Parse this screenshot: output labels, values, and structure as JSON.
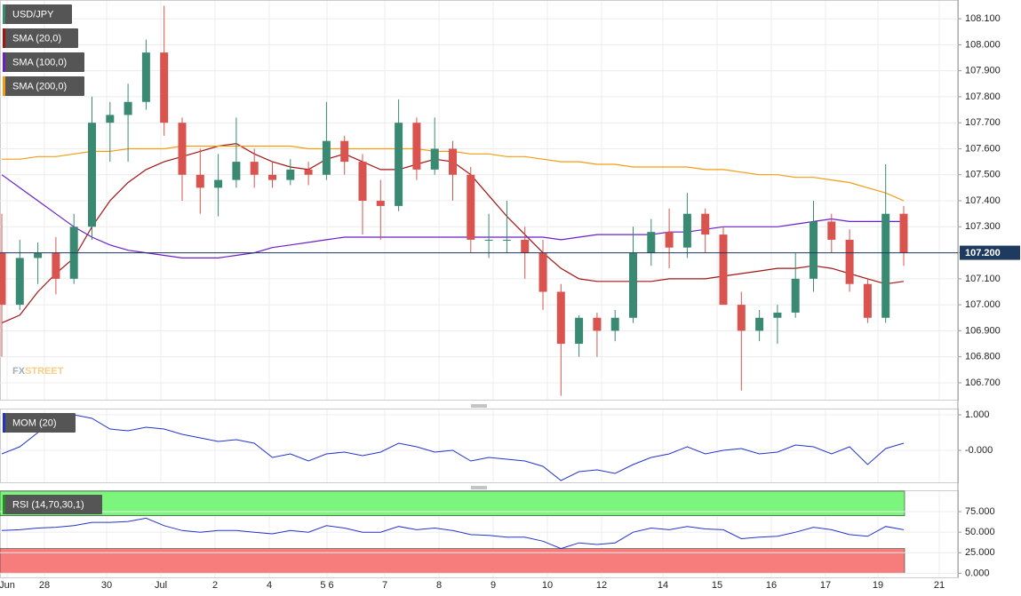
{
  "chart_data": [
    {
      "type": "candlestick",
      "title": "USD/JPY",
      "up_color": "#3a8a73",
      "down_color": "#d9534f",
      "grid": true,
      "open": [
        107.2,
        107.0,
        107.18,
        107.2,
        107.1,
        107.3,
        107.7,
        107.73,
        107.78,
        107.97,
        107.7,
        107.5,
        107.45,
        107.48,
        107.55,
        107.5,
        107.48,
        107.52,
        107.5,
        107.63,
        107.55,
        107.4,
        107.38,
        107.7,
        107.52,
        107.6,
        107.5,
        107.25,
        107.25,
        107.25,
        107.2,
        107.05,
        106.85,
        106.95,
        106.9,
        106.95,
        107.2,
        107.28,
        107.22,
        107.35,
        107.27,
        107.0,
        106.9,
        106.95,
        106.97,
        107.1,
        107.32,
        107.25,
        107.08,
        106.95,
        107.35
      ],
      "high": [
        107.35,
        107.25,
        107.24,
        107.26,
        107.35,
        107.8,
        107.78,
        107.85,
        108.02,
        108.15,
        107.72,
        107.6,
        107.58,
        107.72,
        107.6,
        107.55,
        107.56,
        107.55,
        107.78,
        107.65,
        107.58,
        107.48,
        107.79,
        107.72,
        107.72,
        107.63,
        107.53,
        107.35,
        107.4,
        107.3,
        107.25,
        107.08,
        106.96,
        106.97,
        106.98,
        107.3,
        107.33,
        107.37,
        107.43,
        107.37,
        107.3,
        107.05,
        106.98,
        107.0,
        107.2,
        107.4,
        107.35,
        107.29,
        107.1,
        107.54,
        107.38
      ],
      "low": [
        106.8,
        106.98,
        107.08,
        107.04,
        107.08,
        107.25,
        107.55,
        107.55,
        107.75,
        107.65,
        107.4,
        107.35,
        107.34,
        107.45,
        107.45,
        107.45,
        107.46,
        107.46,
        107.48,
        107.5,
        107.27,
        107.25,
        107.36,
        107.48,
        107.5,
        107.4,
        107.2,
        107.18,
        107.2,
        107.1,
        106.98,
        106.65,
        106.8,
        106.8,
        106.86,
        106.93,
        107.15,
        107.14,
        107.18,
        107.2,
        107.0,
        106.67,
        106.86,
        106.85,
        106.95,
        107.05,
        107.2,
        107.05,
        106.93,
        106.93,
        107.15
      ],
      "close": [
        107.0,
        107.18,
        107.2,
        107.1,
        107.3,
        107.7,
        107.73,
        107.78,
        107.97,
        107.7,
        107.5,
        107.45,
        107.48,
        107.55,
        107.5,
        107.48,
        107.52,
        107.5,
        107.63,
        107.55,
        107.4,
        107.38,
        107.7,
        107.52,
        107.6,
        107.5,
        107.25,
        107.25,
        107.25,
        107.2,
        107.05,
        106.85,
        106.95,
        106.9,
        106.95,
        107.2,
        107.28,
        107.22,
        107.35,
        107.27,
        107.0,
        106.9,
        106.95,
        106.97,
        107.1,
        107.32,
        107.25,
        107.08,
        106.95,
        107.35,
        107.2
      ],
      "series": [
        {
          "name": "SMA (20,0)",
          "color": "#a31515",
          "values": [
            106.93,
            106.96,
            107.05,
            107.12,
            107.18,
            107.3,
            107.4,
            107.47,
            107.52,
            107.55,
            107.57,
            107.59,
            107.61,
            107.62,
            107.58,
            107.55,
            107.53,
            107.52,
            107.56,
            107.58,
            107.55,
            107.52,
            107.52,
            107.54,
            107.56,
            107.55,
            107.5,
            107.42,
            107.34,
            107.27,
            107.2,
            107.14,
            107.1,
            107.09,
            107.09,
            107.09,
            107.09,
            107.1,
            107.1,
            107.1,
            107.11,
            107.12,
            107.13,
            107.14,
            107.14,
            107.15,
            107.14,
            107.12,
            107.1,
            107.08,
            107.09
          ]
        },
        {
          "name": "SMA (100,0)",
          "color": "#6a1fc9",
          "values": [
            107.5,
            107.45,
            107.4,
            107.35,
            107.3,
            107.26,
            107.23,
            107.21,
            107.2,
            107.19,
            107.18,
            107.18,
            107.18,
            107.19,
            107.2,
            107.22,
            107.23,
            107.24,
            107.25,
            107.26,
            107.26,
            107.26,
            107.26,
            107.26,
            107.26,
            107.26,
            107.26,
            107.26,
            107.26,
            107.26,
            107.26,
            107.25,
            107.26,
            107.27,
            107.27,
            107.27,
            107.27,
            107.28,
            107.28,
            107.29,
            107.3,
            107.3,
            107.3,
            107.3,
            107.31,
            107.32,
            107.33,
            107.32,
            107.32,
            107.32,
            107.32
          ]
        },
        {
          "name": "SMA (200,0)",
          "color": "#f39c12",
          "values": [
            107.56,
            107.56,
            107.57,
            107.57,
            107.58,
            107.59,
            107.59,
            107.6,
            107.6,
            107.6,
            107.61,
            107.61,
            107.61,
            107.61,
            107.61,
            107.61,
            107.61,
            107.6,
            107.6,
            107.6,
            107.6,
            107.6,
            107.6,
            107.6,
            107.59,
            107.59,
            107.58,
            107.58,
            107.57,
            107.57,
            107.56,
            107.55,
            107.55,
            107.54,
            107.54,
            107.53,
            107.53,
            107.53,
            107.53,
            107.52,
            107.52,
            107.51,
            107.5,
            107.5,
            107.49,
            107.49,
            107.48,
            107.47,
            107.45,
            107.43,
            107.4
          ]
        }
      ],
      "ylim": [
        106.635,
        108.172
      ],
      "yticks": [
        {
          "value": 106.7,
          "label": "106.700"
        },
        {
          "value": 106.8,
          "label": "106.800"
        },
        {
          "value": 106.9,
          "label": "106.900"
        },
        {
          "value": 107.0,
          "label": "107.000"
        },
        {
          "value": 107.1,
          "label": "107.100"
        },
        {
          "value": 107.2,
          "label": "107.200"
        },
        {
          "value": 107.3,
          "label": "107.300"
        },
        {
          "value": 107.4,
          "label": "107.400"
        },
        {
          "value": 107.5,
          "label": "107.500"
        },
        {
          "value": 107.6,
          "label": "107.600"
        },
        {
          "value": 107.7,
          "label": "107.700"
        },
        {
          "value": 107.8,
          "label": "107.800"
        },
        {
          "value": 107.9,
          "label": "107.900"
        },
        {
          "value": 108.0,
          "label": "108.000"
        },
        {
          "value": 108.1,
          "label": "108.100"
        }
      ],
      "last_price": {
        "value": 107.2,
        "label": "107.200"
      },
      "x_labels": [
        "Jun",
        "28",
        "30",
        "Jul",
        "2",
        "4",
        "5 6",
        "7",
        "8",
        "9",
        "10",
        "12",
        "14",
        "15",
        "16",
        "17",
        "19",
        "21"
      ],
      "watermark": [
        "FX",
        "STREET"
      ]
    },
    {
      "type": "line",
      "title": "MOM (20)",
      "color": "#2233cc",
      "values": [
        -0.1,
        0.1,
        0.5,
        0.9,
        1.0,
        0.9,
        0.6,
        0.55,
        0.65,
        0.6,
        0.45,
        0.35,
        0.25,
        0.3,
        0.2,
        -0.2,
        -0.1,
        -0.3,
        -0.1,
        -0.05,
        -0.15,
        -0.05,
        0.2,
        0.1,
        -0.05,
        0.0,
        -0.3,
        -0.2,
        -0.25,
        -0.3,
        -0.45,
        -0.85,
        -0.6,
        -0.55,
        -0.65,
        -0.4,
        -0.2,
        -0.1,
        0.1,
        -0.1,
        0.0,
        0.05,
        -0.1,
        -0.05,
        0.15,
        0.1,
        -0.1,
        0.1,
        -0.4,
        0.05,
        0.2
      ],
      "ylim": [
        -0.9,
        1.175
      ],
      "yticks": [
        {
          "value": 0,
          "label": "-0.000"
        },
        {
          "value": 1,
          "label": "1.000"
        }
      ]
    },
    {
      "type": "line",
      "title": "RSI (14,70,30,1)",
      "color": "#2233cc",
      "values": [
        52,
        53,
        55,
        56,
        58,
        62,
        62,
        63,
        67,
        58,
        52,
        50,
        52,
        52,
        50,
        48,
        52,
        50,
        58,
        55,
        50,
        50,
        57,
        53,
        55,
        52,
        47,
        46,
        44,
        44,
        39,
        30,
        37,
        35,
        37,
        50,
        55,
        53,
        57,
        54,
        53,
        42,
        44,
        45,
        50,
        56,
        53,
        47,
        45,
        57,
        53
      ],
      "bands": [
        {
          "from": 70,
          "to": 100,
          "color": "#7cf57c"
        },
        {
          "from": 0,
          "to": 30,
          "color": "#f77c7c"
        }
      ],
      "ylim": [
        -5,
        101
      ],
      "yticks": [
        {
          "value": 0,
          "label": "0.000"
        },
        {
          "value": 25,
          "label": "25.000"
        },
        {
          "value": 50,
          "label": "50.000"
        },
        {
          "value": 75,
          "label": "75.000"
        }
      ]
    }
  ]
}
